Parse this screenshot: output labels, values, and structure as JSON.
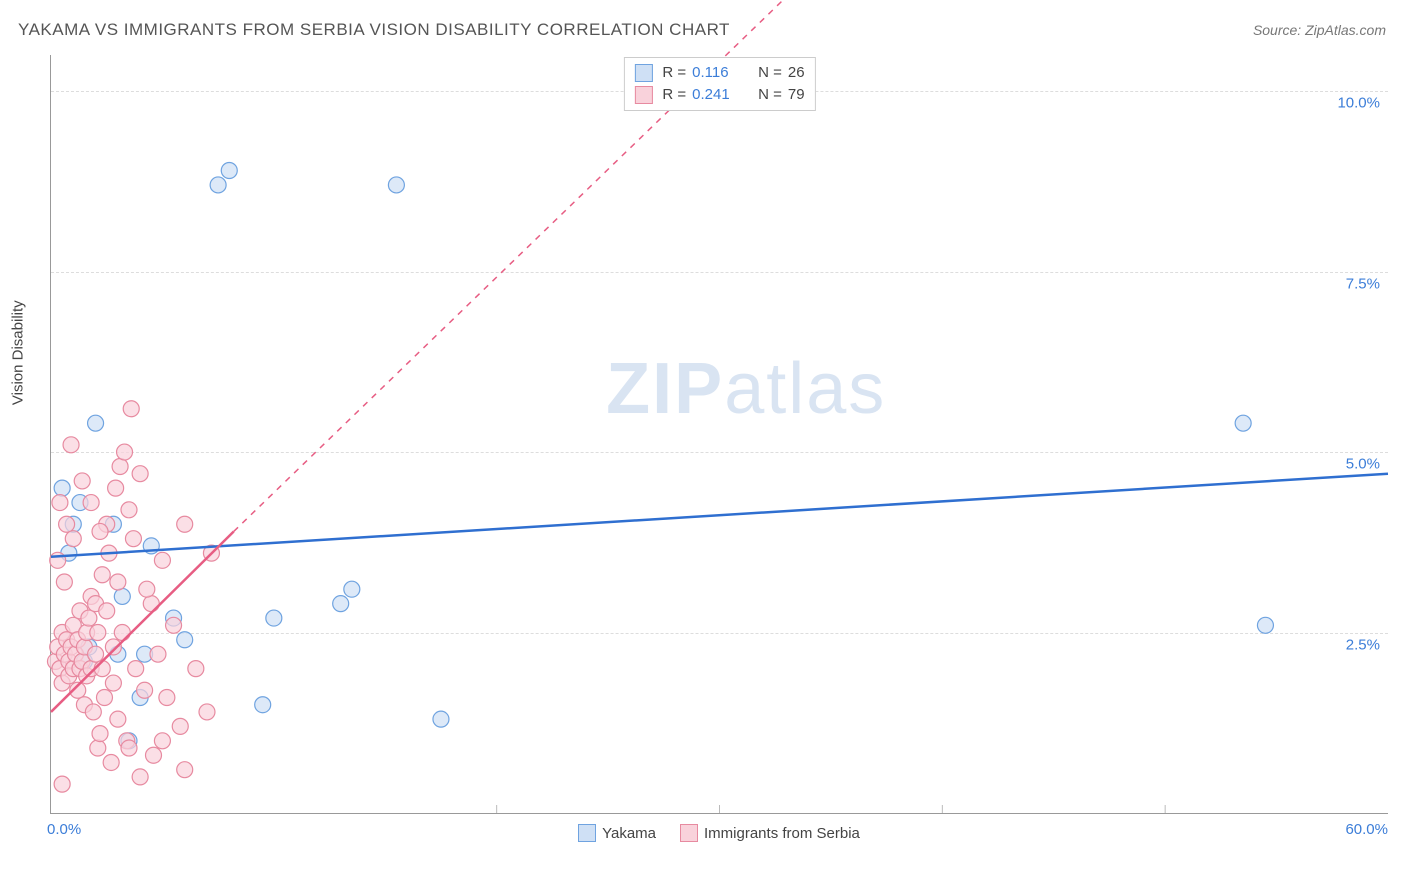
{
  "title": "YAKAMA VS IMMIGRANTS FROM SERBIA VISION DISABILITY CORRELATION CHART",
  "source": "Source: ZipAtlas.com",
  "ylabel": "Vision Disability",
  "watermark_bold": "ZIP",
  "watermark_light": "atlas",
  "chart": {
    "type": "scatter",
    "background_color": "#ffffff",
    "grid_color": "#dddddd",
    "axis_color": "#999999",
    "xlim": [
      0,
      60
    ],
    "ylim": [
      0,
      10.5
    ],
    "yticks": [
      {
        "v": 2.5,
        "label": "2.5%"
      },
      {
        "v": 5.0,
        "label": "5.0%"
      },
      {
        "v": 7.5,
        "label": "7.5%"
      },
      {
        "v": 10.0,
        "label": "10.0%"
      }
    ],
    "x_min_label": "0.0%",
    "x_max_label": "60.0%",
    "xticks_minor": [
      20,
      30,
      40,
      50
    ],
    "series": [
      {
        "id": "yakama",
        "label": "Yakama",
        "color_fill": "#cfe0f5",
        "color_stroke": "#6fa3e0",
        "line_color": "#2f6fd0",
        "line_dash": "none",
        "R": "0.116",
        "N": "26",
        "trend": {
          "x1": 0,
          "y1": 3.55,
          "x2": 60,
          "y2": 4.7
        },
        "marker_r": 8,
        "points": [
          [
            0.5,
            4.5
          ],
          [
            1.0,
            4.0
          ],
          [
            1.3,
            4.3
          ],
          [
            2.0,
            5.4
          ],
          [
            2.8,
            4.0
          ],
          [
            3.0,
            2.2
          ],
          [
            3.2,
            3.0
          ],
          [
            3.5,
            1.0
          ],
          [
            4.0,
            1.6
          ],
          [
            4.5,
            3.7
          ],
          [
            5.5,
            2.7
          ],
          [
            6.0,
            2.4
          ],
          [
            7.5,
            8.7
          ],
          [
            8.0,
            8.9
          ],
          [
            9.5,
            1.5
          ],
          [
            10.0,
            2.7
          ],
          [
            13.0,
            2.9
          ],
          [
            13.5,
            3.1
          ],
          [
            17.5,
            1.3
          ],
          [
            15.5,
            8.7
          ],
          [
            53.5,
            5.4
          ],
          [
            54.5,
            2.6
          ],
          [
            0.8,
            3.6
          ],
          [
            1.5,
            2.1
          ],
          [
            1.7,
            2.3
          ],
          [
            4.2,
            2.2
          ]
        ]
      },
      {
        "id": "serbia",
        "label": "Immigrants from Serbia",
        "color_fill": "#f9d2db",
        "color_stroke": "#e78aa0",
        "line_color": "#e75d83",
        "line_dash": "6,6",
        "R": "0.241",
        "N": "79",
        "trend_solid": {
          "x1": 0,
          "y1": 1.4,
          "x2": 8.2,
          "y2": 3.9
        },
        "trend_dash": {
          "x1": 8.2,
          "y1": 3.9,
          "x2": 37,
          "y2": 12.5
        },
        "marker_r": 8,
        "points": [
          [
            0.2,
            2.1
          ],
          [
            0.3,
            2.3
          ],
          [
            0.4,
            2.0
          ],
          [
            0.5,
            2.5
          ],
          [
            0.5,
            1.8
          ],
          [
            0.6,
            2.2
          ],
          [
            0.7,
            2.4
          ],
          [
            0.8,
            2.1
          ],
          [
            0.8,
            1.9
          ],
          [
            0.9,
            2.3
          ],
          [
            1.0,
            2.0
          ],
          [
            1.0,
            2.6
          ],
          [
            1.1,
            2.2
          ],
          [
            1.2,
            1.7
          ],
          [
            1.2,
            2.4
          ],
          [
            1.3,
            2.0
          ],
          [
            1.3,
            2.8
          ],
          [
            1.4,
            2.1
          ],
          [
            1.5,
            1.5
          ],
          [
            1.5,
            2.3
          ],
          [
            1.6,
            2.5
          ],
          [
            1.6,
            1.9
          ],
          [
            1.7,
            2.7
          ],
          [
            1.8,
            2.0
          ],
          [
            1.8,
            3.0
          ],
          [
            1.9,
            1.4
          ],
          [
            2.0,
            2.2
          ],
          [
            2.0,
            2.9
          ],
          [
            2.1,
            0.9
          ],
          [
            2.1,
            2.5
          ],
          [
            2.2,
            1.1
          ],
          [
            2.3,
            3.3
          ],
          [
            2.3,
            2.0
          ],
          [
            2.4,
            1.6
          ],
          [
            2.5,
            2.8
          ],
          [
            2.5,
            4.0
          ],
          [
            2.6,
            3.6
          ],
          [
            2.7,
            0.7
          ],
          [
            2.8,
            2.3
          ],
          [
            2.9,
            4.5
          ],
          [
            3.0,
            3.2
          ],
          [
            3.0,
            1.3
          ],
          [
            3.1,
            4.8
          ],
          [
            3.2,
            2.5
          ],
          [
            3.3,
            5.0
          ],
          [
            3.4,
            1.0
          ],
          [
            3.5,
            4.2
          ],
          [
            3.6,
            5.6
          ],
          [
            3.7,
            3.8
          ],
          [
            3.8,
            2.0
          ],
          [
            4.0,
            0.5
          ],
          [
            4.0,
            4.7
          ],
          [
            4.2,
            1.7
          ],
          [
            4.5,
            2.9
          ],
          [
            4.6,
            0.8
          ],
          [
            4.8,
            2.2
          ],
          [
            5.0,
            1.0
          ],
          [
            5.0,
            3.5
          ],
          [
            5.2,
            1.6
          ],
          [
            5.5,
            2.6
          ],
          [
            5.8,
            1.2
          ],
          [
            6.0,
            0.6
          ],
          [
            6.0,
            4.0
          ],
          [
            6.5,
            2.0
          ],
          [
            7.0,
            1.4
          ],
          [
            7.2,
            3.6
          ],
          [
            0.3,
            3.5
          ],
          [
            0.4,
            4.3
          ],
          [
            0.6,
            3.2
          ],
          [
            0.7,
            4.0
          ],
          [
            1.0,
            3.8
          ],
          [
            1.4,
            4.6
          ],
          [
            0.9,
            5.1
          ],
          [
            0.5,
            0.4
          ],
          [
            1.8,
            4.3
          ],
          [
            2.2,
            3.9
          ],
          [
            2.8,
            1.8
          ],
          [
            3.5,
            0.9
          ],
          [
            4.3,
            3.1
          ]
        ]
      }
    ]
  },
  "legend_bottom": [
    {
      "label": "Yakama",
      "fill": "#cfe0f5",
      "stroke": "#6fa3e0"
    },
    {
      "label": "Immigrants from Serbia",
      "fill": "#f9d2db",
      "stroke": "#e78aa0"
    }
  ]
}
